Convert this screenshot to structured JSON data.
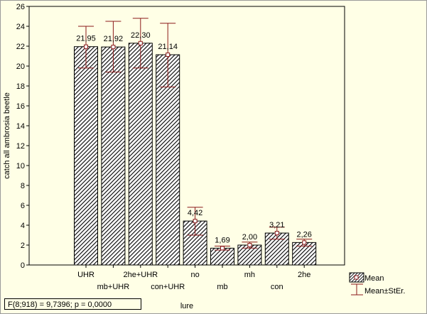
{
  "chart_data": {
    "type": "bar",
    "categories": [
      "UHR",
      "mb+UHR",
      "2he+UHR",
      "con+UHR",
      "no",
      "mb",
      "mh",
      "con",
      "2he"
    ],
    "values": [
      21.95,
      21.92,
      22.3,
      21.14,
      4.42,
      1.69,
      2.0,
      3.21,
      2.26
    ],
    "value_labels": [
      "21,95",
      "21,92",
      "22,30",
      "21,14",
      "4,42",
      "1,69",
      "2,00",
      "3,21",
      "2,26"
    ],
    "error_upper": [
      24.0,
      24.5,
      24.8,
      24.3,
      5.8,
      1.9,
      2.3,
      3.8,
      2.6
    ],
    "error_lower": [
      19.8,
      19.4,
      19.8,
      17.9,
      3.0,
      1.5,
      1.7,
      2.6,
      1.9
    ],
    "xlabel": "lure",
    "ylabel": "catch all ambrosia beetle",
    "ylim": [
      0,
      26
    ],
    "yticks": [
      0,
      2,
      4,
      6,
      8,
      10,
      12,
      14,
      16,
      18,
      20,
      22,
      24,
      26
    ],
    "grid": false,
    "legend_placement": "bottom-right",
    "legend": [
      {
        "label": "Mean",
        "kind": "hatched-bar"
      },
      {
        "label": "Mean±StEr.",
        "kind": "error-whisker"
      }
    ],
    "colors": {
      "plot_background": "#ffffe6",
      "bar_hatch": "#000000",
      "error_bar": "#8b1a1a"
    }
  },
  "annotation": {
    "stat_text": "F(8;918) = 9,7396; p = 0,0000"
  }
}
